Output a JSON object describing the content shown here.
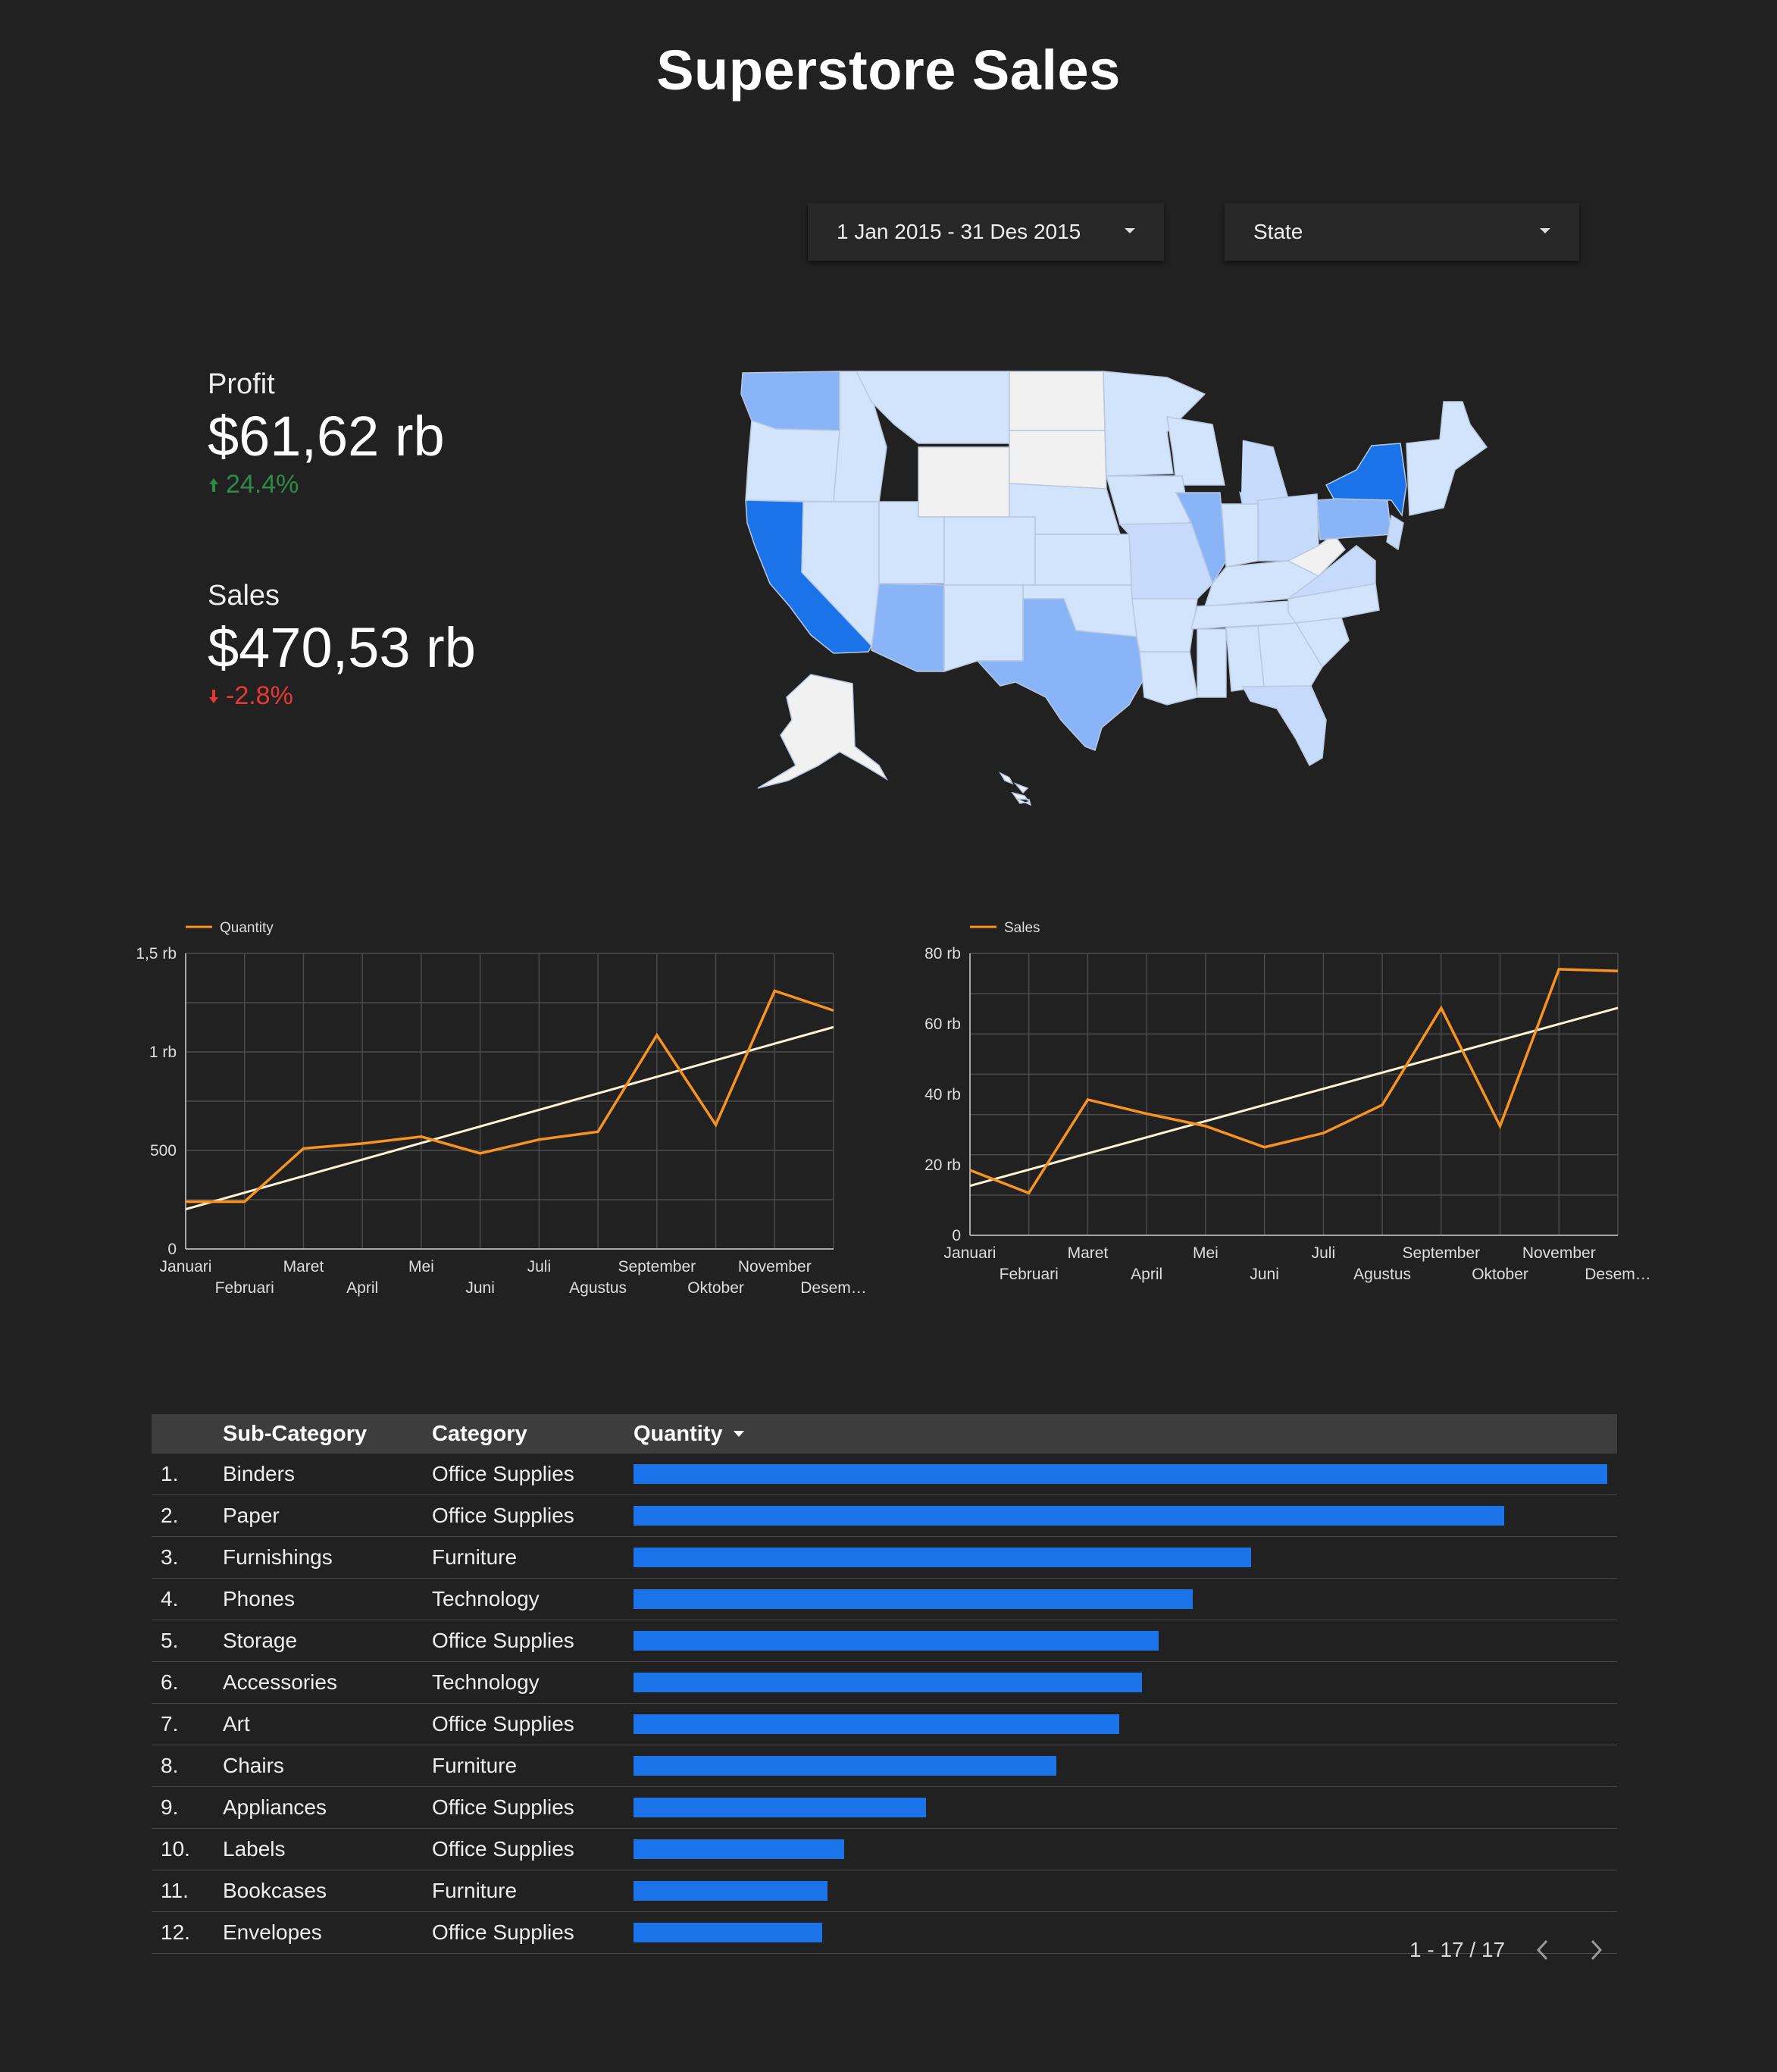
{
  "header": {
    "title": "Superstore Sales"
  },
  "filters": {
    "date_range": "1 Jan 2015 - 31 Des 2015",
    "state": "State"
  },
  "kpis": {
    "profit": {
      "label": "Profit",
      "value": "$61,62 rb",
      "delta": "24.4%",
      "direction": "up"
    },
    "sales": {
      "label": "Sales",
      "value": "$470,53 rb",
      "delta": "-2.8%",
      "direction": "down"
    }
  },
  "map": {
    "type": "us-state-choropleth",
    "high_states": [
      "California",
      "New York"
    ],
    "mid_states": [
      "Texas",
      "Washington",
      "Pennsylvania",
      "Illinois",
      "Arizona"
    ],
    "no_data_states": [
      "Wyoming",
      "North Dakota",
      "South Dakota",
      "West Virginia",
      "Alaska",
      "Hawaii"
    ],
    "colors": {
      "high": "#1a73e8",
      "mid": "#8ab4f8",
      "low": "#d2e3fc",
      "none": "#f1f1f1"
    }
  },
  "chart_data": [
    {
      "type": "line",
      "x": [
        "Januari",
        "Februari",
        "Maret",
        "April",
        "Mei",
        "Juni",
        "Juli",
        "Agustus",
        "September",
        "Oktober",
        "November",
        "Desem…"
      ],
      "series": [
        {
          "name": "Quantity",
          "values": [
            240,
            240,
            510,
            535,
            570,
            485,
            555,
            595,
            1085,
            630,
            1310,
            1210
          ]
        }
      ],
      "trendline": true,
      "ylim": [
        0,
        1500
      ],
      "yticks": [
        "0",
        "500",
        "1 rb",
        "1,5 rb"
      ],
      "legend": "top-left",
      "grid": true
    },
    {
      "type": "line",
      "x": [
        "Januari",
        "Februari",
        "Maret",
        "April",
        "Mei",
        "Juni",
        "Juli",
        "Agustus",
        "September",
        "Oktober",
        "November",
        "Desem…"
      ],
      "series": [
        {
          "name": "Sales",
          "values": [
            18500,
            12000,
            38500,
            34500,
            31000,
            25000,
            29000,
            37000,
            64500,
            31000,
            75500,
            75000
          ]
        }
      ],
      "trendline": true,
      "ylim": [
        0,
        80000
      ],
      "yticks": [
        "0",
        "20 rb",
        "40 rb",
        "60 rb",
        "80 rb"
      ],
      "legend": "top-left",
      "grid": true
    }
  ],
  "table": {
    "headers": {
      "sub_category": "Sub-Category",
      "category": "Category",
      "quantity": "Quantity"
    },
    "rows": [
      {
        "idx": "1.",
        "sub": "Binders",
        "cat": "Office Supplies",
        "qty_fraction": 1.0
      },
      {
        "idx": "2.",
        "sub": "Paper",
        "cat": "Office Supplies",
        "qty_fraction": 0.894
      },
      {
        "idx": "3.",
        "sub": "Furnishings",
        "cat": "Furniture",
        "qty_fraction": 0.634
      },
      {
        "idx": "4.",
        "sub": "Phones",
        "cat": "Technology",
        "qty_fraction": 0.574
      },
      {
        "idx": "5.",
        "sub": "Storage",
        "cat": "Office Supplies",
        "qty_fraction": 0.539
      },
      {
        "idx": "6.",
        "sub": "Accessories",
        "cat": "Technology",
        "qty_fraction": 0.522
      },
      {
        "idx": "7.",
        "sub": "Art",
        "cat": "Office Supplies",
        "qty_fraction": 0.499
      },
      {
        "idx": "8.",
        "sub": "Chairs",
        "cat": "Furniture",
        "qty_fraction": 0.434
      },
      {
        "idx": "9.",
        "sub": "Appliances",
        "cat": "Office Supplies",
        "qty_fraction": 0.3
      },
      {
        "idx": "10.",
        "sub": "Labels",
        "cat": "Office Supplies",
        "qty_fraction": 0.216
      },
      {
        "idx": "11.",
        "sub": "Bookcases",
        "cat": "Furniture",
        "qty_fraction": 0.199
      },
      {
        "idx": "12.",
        "sub": "Envelopes",
        "cat": "Office Supplies",
        "qty_fraction": 0.194
      }
    ]
  },
  "pagination": {
    "label": "1 - 17 / 17"
  },
  "colors": {
    "accent": "#1a73e8",
    "line": "#f7931e",
    "trend": "#fff3d6",
    "background": "#212121"
  }
}
